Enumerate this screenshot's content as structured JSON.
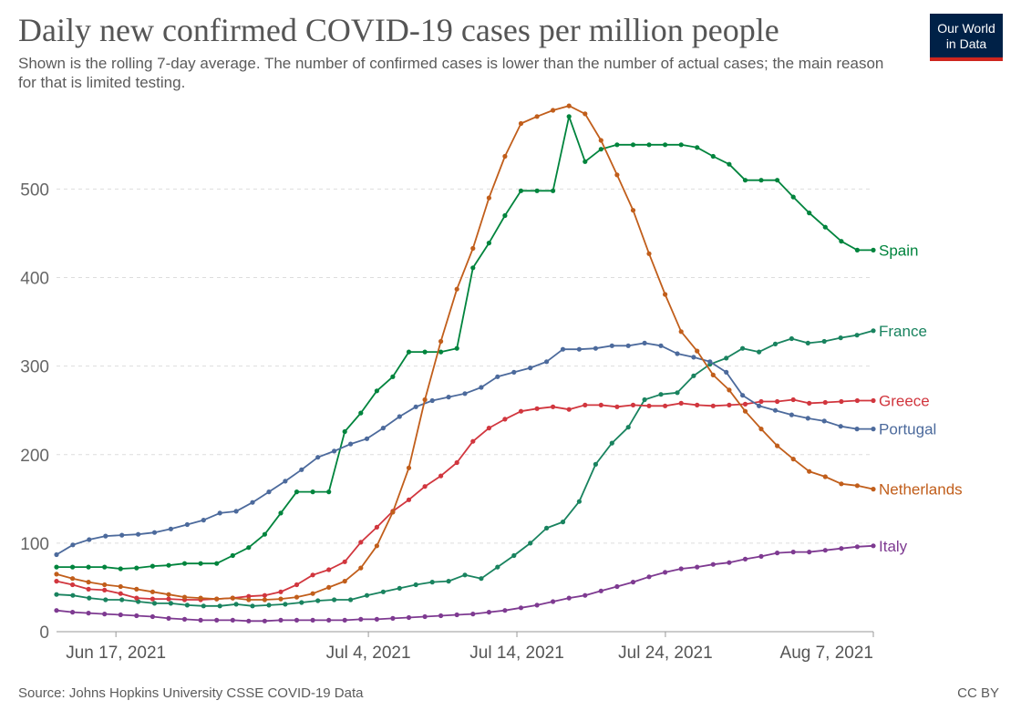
{
  "title": "Daily new confirmed COVID-19 cases per million people",
  "subtitle": "Shown is the rolling 7-day average. The number of confirmed cases is lower than the number of actual cases; the main reason for that is limited testing.",
  "logo": {
    "line1": "Our World",
    "line2": "in Data"
  },
  "footer": {
    "source": "Source: Johns Hopkins University CSSE COVID-19 Data",
    "license": "CC BY"
  },
  "chart_data": {
    "type": "line",
    "title": "Daily new confirmed COVID-19 cases per million people",
    "xlabel": "",
    "ylabel": "",
    "x_start": "2021-06-13",
    "x_end": "2021-08-07",
    "ylim": [
      0,
      590
    ],
    "y_ticks": [
      0,
      100,
      200,
      300,
      400,
      500
    ],
    "x_ticks": [
      {
        "date": "2021-06-17",
        "label": "Jun 17, 2021"
      },
      {
        "date": "2021-07-04",
        "label": "Jul 4, 2021"
      },
      {
        "date": "2021-07-14",
        "label": "Jul 14, 2021"
      },
      {
        "date": "2021-07-24",
        "label": "Jul 24, 2021"
      },
      {
        "date": "2021-08-07",
        "label": "Aug 7, 2021"
      }
    ],
    "grid": true,
    "legend": "inline labels at line ends",
    "series": [
      {
        "name": "Spain",
        "color": "#00843d",
        "values": [
          73,
          73,
          73,
          73,
          71,
          72,
          74,
          75,
          77,
          77,
          77,
          86,
          95,
          110,
          134,
          158,
          158,
          158,
          226,
          247,
          272,
          288,
          316,
          316,
          316,
          320,
          411,
          439,
          470,
          498,
          498,
          498,
          582,
          531,
          545,
          550,
          550,
          550,
          550,
          550,
          547,
          537,
          528,
          510,
          510,
          510,
          491,
          473,
          457,
          441,
          431,
          431
        ]
      },
      {
        "name": "France",
        "color": "#19835f",
        "values": [
          42,
          41,
          38,
          36,
          36,
          34,
          32,
          32,
          30,
          29,
          29,
          31,
          29,
          30,
          31,
          33,
          35,
          36,
          36,
          41,
          45,
          49,
          53,
          56,
          57,
          64,
          60,
          73,
          86,
          100,
          117,
          124,
          147,
          189,
          213,
          231,
          262,
          268,
          270,
          289,
          302,
          309,
          320,
          316,
          325,
          331,
          326,
          328,
          332,
          335,
          340
        ]
      },
      {
        "name": "Greece",
        "color": "#d1363e",
        "values": [
          57,
          53,
          48,
          47,
          43,
          38,
          37,
          37,
          36,
          36,
          37,
          38,
          40,
          41,
          45,
          53,
          64,
          70,
          79,
          101,
          118,
          136,
          149,
          164,
          176,
          191,
          215,
          230,
          240,
          249,
          252,
          254,
          251,
          256,
          256,
          254,
          256,
          255,
          255,
          258,
          256,
          255,
          256,
          257,
          260,
          260,
          262,
          258,
          259,
          260,
          261,
          261
        ]
      },
      {
        "name": "Portugal",
        "color": "#4c6a9c",
        "values": [
          87,
          98,
          104,
          108,
          109,
          110,
          112,
          116,
          121,
          126,
          134,
          136,
          146,
          158,
          170,
          183,
          197,
          204,
          212,
          218,
          230,
          243,
          254,
          261,
          265,
          269,
          276,
          288,
          293,
          298,
          305,
          319,
          319,
          320,
          323,
          323,
          326,
          323,
          314,
          310,
          305,
          293,
          267,
          255,
          250,
          245,
          241,
          238,
          232,
          229,
          229
        ]
      },
      {
        "name": "Netherlands",
        "color": "#c15e1b",
        "values": [
          65,
          60,
          56,
          53,
          51,
          48,
          45,
          42,
          39,
          38,
          37,
          38,
          36,
          36,
          37,
          39,
          43,
          50,
          57,
          72,
          97,
          135,
          185,
          262,
          328,
          387,
          433,
          490,
          537,
          574,
          582,
          589,
          594,
          585,
          555,
          516,
          476,
          427,
          381,
          339,
          317,
          290,
          273,
          249,
          229,
          210,
          195,
          181,
          175,
          167,
          165,
          161
        ]
      },
      {
        "name": "Italy",
        "color": "#7e3a91",
        "values": [
          24,
          22,
          21,
          20,
          19,
          18,
          17,
          15,
          14,
          13,
          13,
          13,
          12,
          12,
          13,
          13,
          13,
          13,
          13,
          14,
          14,
          15,
          16,
          17,
          18,
          19,
          20,
          22,
          24,
          27,
          30,
          34,
          38,
          41,
          46,
          51,
          56,
          62,
          67,
          71,
          73,
          76,
          78,
          82,
          85,
          89,
          90,
          90,
          92,
          94,
          96,
          97
        ]
      }
    ]
  }
}
